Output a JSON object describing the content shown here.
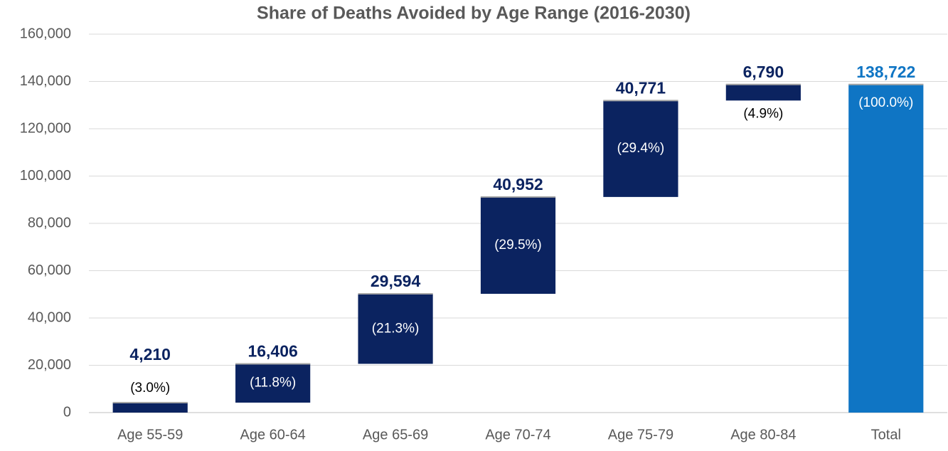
{
  "chart_data": {
    "type": "waterfall",
    "title": "Share of Deaths Avoided by Age Range (2016-2030)",
    "categories": [
      "Age 55-59",
      "Age 60-64",
      "Age 65-69",
      "Age 70-74",
      "Age 75-79",
      "Age 80-84",
      "Total"
    ],
    "values": [
      4210,
      16406,
      29594,
      40952,
      40771,
      6790,
      138722
    ],
    "value_labels": [
      "4,210",
      "16,406",
      "29,594",
      "40,952",
      "40,771",
      "6,790",
      "138,722"
    ],
    "share_labels": [
      "(3.0%)",
      "(11.8%)",
      "(21.3%)",
      "(29.5%)",
      "(29.4%)",
      "(4.9%)",
      "(100.0%)"
    ],
    "measure": [
      "relative",
      "relative",
      "relative",
      "relative",
      "relative",
      "relative",
      "total"
    ],
    "color": "#0b2360",
    "total_color": "#0f75c4",
    "ylim": [
      0,
      160000
    ],
    "yticks": [
      0,
      {
        "value": 20000,
        "label": "20,000"
      },
      {
        "value": 40000,
        "label": "40,000"
      },
      {
        "value": 60000,
        "label": "60,000"
      },
      {
        "value": 80000,
        "label": "80,000"
      },
      {
        "value": 100000,
        "label": "100,000"
      },
      {
        "value": 120000,
        "label": "120,000"
      },
      {
        "value": 140000,
        "label": "140,000"
      },
      {
        "value": 160000,
        "label": "160,000"
      }
    ],
    "grid": true
  }
}
